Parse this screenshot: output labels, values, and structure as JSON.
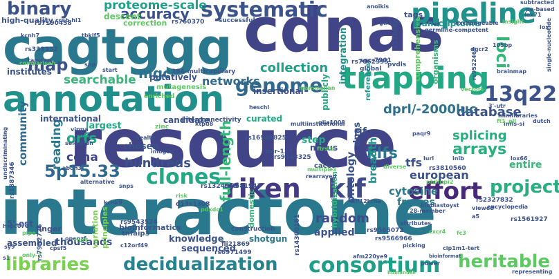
{
  "words": [
    {
      "text": "resource",
      "color": "#414487"
    },
    {
      "text": "interactome",
      "color": "#2a788e"
    },
    {
      "text": "cdnas",
      "color": "#414487"
    },
    {
      "text": "cagtggg",
      "color": "#2a788e"
    },
    {
      "text": "annotation",
      "color": "#21908d"
    },
    {
      "text": "trapping",
      "color": "#22a884"
    },
    {
      "text": "pipeline",
      "color": "#21918c"
    },
    {
      "text": "systematic",
      "color": "#3b528b"
    },
    {
      "text": "binary",
      "color": "#3b528b"
    },
    {
      "text": "riken",
      "color": "#443983"
    },
    {
      "text": "klf",
      "color": "#3e4a89"
    },
    {
      "text": "effort",
      "color": "#482878"
    },
    {
      "text": "clones",
      "color": "#22a884"
    },
    {
      "text": "project",
      "color": "#28ae80"
    },
    {
      "text": "13q22",
      "color": "#3b528b"
    },
    {
      "text": "genome",
      "color": "#31688e"
    },
    {
      "text": "map",
      "color": "#3b528b"
    },
    {
      "text": "loci",
      "color": "#35b779"
    },
    {
      "text": "consortium",
      "color": "#1f9e89"
    },
    {
      "text": "heritable",
      "color": "#5ec962"
    },
    {
      "text": "libraries",
      "color": "#7ad151"
    },
    {
      "text": "decidualization",
      "color": "#26828e"
    },
    {
      "text": "5p15.33",
      "color": "#31688e"
    },
    {
      "text": "accuracy",
      "color": "#3b528b"
    },
    {
      "text": "proteome-scale",
      "color": "#1f9e89"
    },
    {
      "text": "collection",
      "color": "#1f9e89"
    },
    {
      "text": "mgc",
      "color": "#2d708e"
    },
    {
      "text": "searchable",
      "color": "#35b779"
    },
    {
      "text": "networks",
      "color": "#31688e"
    },
    {
      "text": "database",
      "color": "#3b528b"
    },
    {
      "text": "dprl/-2000luc",
      "color": "#2d708e"
    },
    {
      "text": "klfs",
      "color": "#2a788e"
    },
    {
      "text": "arrays",
      "color": "#2ab07f"
    },
    {
      "text": "splicing",
      "color": "#29af7f"
    },
    {
      "text": "hundreds",
      "color": "#3b528b"
    },
    {
      "text": "full-length",
      "color": "#35b779"
    },
    {
      "text": "random",
      "color": "#3e4a89"
    },
    {
      "text": "orfs",
      "color": "#22a884"
    },
    {
      "text": "reading",
      "color": "#2a788e"
    },
    {
      "text": "community",
      "color": "#31688e"
    },
    {
      "text": "cdna",
      "color": "#414487"
    },
    {
      "text": "ontology",
      "color": "#3b528b"
    },
    {
      "text": "breadth",
      "color": "#21918c"
    },
    {
      "text": "tfs",
      "color": "#3b528b"
    },
    {
      "text": "european",
      "color": "#3b528b"
    },
    {
      "text": "cytosine",
      "color": "#2a788e"
    },
    {
      "text": "frames",
      "color": "#2a788e"
    },
    {
      "text": "entire",
      "color": "#35b779"
    },
    {
      "text": "dnas",
      "color": "#3b528b"
    },
    {
      "text": "thousands",
      "color": "#3b528b"
    },
    {
      "text": "assembled",
      "color": "#3b528b"
    },
    {
      "text": "knowledge",
      "color": "#3b528b"
    },
    {
      "text": "sequenced",
      "color": "#3b528b"
    },
    {
      "text": "applied",
      "color": "#3b528b"
    },
    {
      "text": "shotgun",
      "color": "#2a788e"
    },
    {
      "text": "largest",
      "color": "#22a884"
    },
    {
      "text": "chosen",
      "color": "#3b528b"
    },
    {
      "text": "step",
      "color": "#22a884"
    },
    {
      "text": "rif",
      "color": "#3b528b"
    },
    {
      "text": "curated",
      "color": "#22a884"
    },
    {
      "text": "international",
      "color": "#3b528b"
    },
    {
      "text": "candidate",
      "color": "#3b528b"
    },
    {
      "text": "integration",
      "color": "#21918c"
    },
    {
      "text": "publicly",
      "color": "#22a884"
    },
    {
      "text": "insertional",
      "color": "#3b528b"
    },
    {
      "text": "comprehensive",
      "color": "#5ec962"
    },
    {
      "text": "transcriptome",
      "color": "#21918c"
    },
    {
      "text": "organisms",
      "color": "#35b779"
    },
    {
      "text": "institutes",
      "color": "#3b528b"
    },
    {
      "text": "high-quality",
      "color": "#3b528b"
    },
    {
      "text": "descent",
      "color": "#5ec962"
    },
    {
      "text": "correction",
      "color": "#5ec962"
    },
    {
      "text": "putatively",
      "color": "#3b528b"
    },
    {
      "text": "tags",
      "color": "#3b528b"
    },
    {
      "text": "hybridization",
      "color": "#35b779"
    },
    {
      "text": "domestic",
      "color": "#35b779"
    },
    {
      "text": "reference",
      "color": "#21918c"
    },
    {
      "text": "mutagenesis",
      "color": "#5ec962"
    },
    {
      "text": "principles",
      "color": "#7ad151"
    },
    {
      "text": "variation",
      "color": "#7ad151"
    },
    {
      "text": "finger",
      "color": "#3b528b"
    },
    {
      "text": "bioinformatics",
      "color": "#3b528b"
    },
    {
      "text": "5'-est",
      "color": "#3b528b"
    },
    {
      "text": "tnfaip3",
      "color": "#3b528b"
    },
    {
      "text": "successful",
      "color": "#3b528b"
    },
    {
      "text": "interconnectivity",
      "color": "#3b528b"
    },
    {
      "text": "construction",
      "color": "#3b528b"
    },
    {
      "text": "c57bl/6n",
      "color": "#3b528b"
    },
    {
      "text": "global",
      "color": "#3b528b"
    },
    {
      "text": "nexus",
      "color": "#3b528b"
    },
    {
      "text": "caccc",
      "color": "#3b528b"
    },
    {
      "text": "flj21869",
      "color": "#3b528b"
    },
    {
      "text": "rs6971499",
      "color": "#3b528b"
    },
    {
      "text": "mir-137",
      "color": "#3b528b"
    },
    {
      "text": "rs16986825",
      "color": "#3b528b"
    },
    {
      "text": "rs9543325",
      "color": "#3b528b"
    },
    {
      "text": "rs1324913",
      "color": "#3b528b"
    },
    {
      "text": "rs9581943",
      "color": "#3b528b"
    },
    {
      "text": "rs9543524",
      "color": "#3b528b"
    },
    {
      "text": "rs9565072",
      "color": "#3b528b"
    },
    {
      "text": "rs9566966",
      "color": "#3b528b"
    },
    {
      "text": "rs3810560",
      "color": "#3b528b"
    },
    {
      "text": "rs2327832",
      "color": "#3b528b"
    },
    {
      "text": "rs1561927",
      "color": "#3b528b"
    },
    {
      "text": "rs7062395",
      "color": "#3b528b"
    },
    {
      "text": "rs760370",
      "color": "#3b528b"
    },
    {
      "text": "rs7190458",
      "color": "#3b528b"
    },
    {
      "text": "rs333332",
      "color": "#3b528b"
    },
    {
      "text": "rs1887346",
      "color": "#3b528b"
    },
    {
      "text": "rs7932726",
      "color": "#3b528b"
    },
    {
      "text": "rs14300161",
      "color": "#3b528b"
    },
    {
      "text": "384-multicapillary",
      "color": "#3b528b"
    },
    {
      "text": "d13s1308",
      "color": "#3b528b"
    },
    {
      "text": "sgc-7901",
      "color": "#3b528b"
    },
    {
      "text": "pvdls",
      "color": "#3b528b"
    },
    {
      "text": "kcnh7",
      "color": "#3b528b"
    },
    {
      "text": "kcnk9",
      "color": "#3b528b"
    },
    {
      "text": "tbklf5",
      "color": "#3b528b"
    },
    {
      "text": "gtf3c5",
      "color": "#3b528b"
    },
    {
      "text": "ccsb-hi1",
      "color": "#3b528b"
    },
    {
      "text": "tarscan",
      "color": "#3b528b"
    },
    {
      "text": "hspc070",
      "color": "#3b528b"
    },
    {
      "text": "cpsf5",
      "color": "#3b528b"
    },
    {
      "text": "openzf",
      "color": "#3b528b"
    },
    {
      "text": "c12orf49",
      "color": "#3b528b"
    },
    {
      "text": "afm220ye9",
      "color": "#3b528b"
    },
    {
      "text": "picking",
      "color": "#3b528b"
    },
    {
      "text": "cip1m1-tert",
      "color": "#3b528b"
    },
    {
      "text": "power",
      "color": "#3b528b"
    },
    {
      "text": "abdh3",
      "color": "#3b528b"
    },
    {
      "text": "imogen",
      "color": "#3b528b"
    },
    {
      "text": "ktpu8",
      "color": "#3b528b"
    },
    {
      "text": "virma",
      "color": "#3b528b"
    },
    {
      "text": "snps",
      "color": "#3b528b"
    },
    {
      "text": "selection",
      "color": "#3b528b"
    },
    {
      "text": "alternative",
      "color": "#3b528b"
    },
    {
      "text": "health",
      "color": "#3b528b"
    },
    {
      "text": "exchangeable",
      "color": "#3b528b"
    },
    {
      "text": "anoikis",
      "color": "#3b528b"
    },
    {
      "text": "subtracted",
      "color": "#3b528b"
    },
    {
      "text": "pe-based",
      "color": "#3b528b"
    },
    {
      "text": "dgcr2",
      "color": "#3b528b"
    },
    {
      "text": "3'-utr",
      "color": "#3b528b"
    },
    {
      "text": "minilibraries",
      "color": "#3b528b"
    },
    {
      "text": "dutch",
      "color": "#3b528b"
    },
    {
      "text": "lox71",
      "color": "#3b528b"
    },
    {
      "text": "lox66",
      "color": "#3b528b"
    },
    {
      "text": "lox",
      "color": "#3b528b"
    },
    {
      "text": "105bp",
      "color": "#3b528b"
    },
    {
      "text": "brainmap",
      "color": "#3b528b"
    },
    {
      "text": "single-nucleotide",
      "color": "#3b528b"
    },
    {
      "text": "rs9522466",
      "color": "#3b528b"
    },
    {
      "text": "infls-si",
      "color": "#3b528b"
    },
    {
      "text": "paqr9",
      "color": "#3b528b"
    },
    {
      "text": "lurl",
      "color": "#3b528b"
    },
    {
      "text": "inib",
      "color": "#3b528b"
    },
    {
      "text": "encyclopedia",
      "color": "#3b528b"
    },
    {
      "text": "viewed",
      "color": "#3b528b"
    },
    {
      "text": "biobiastoyst",
      "color": "#3b528b"
    },
    {
      "text": "attributes",
      "color": "#3b528b"
    },
    {
      "text": "heschl",
      "color": "#3b528b"
    },
    {
      "text": "rearrayed",
      "color": "#3b528b"
    },
    {
      "text": "28-member",
      "color": "#3b528b"
    },
    {
      "text": "klf12krna",
      "color": "#3b528b"
    },
    {
      "text": "multiinstitutional",
      "color": "#3b528b"
    },
    {
      "text": "snp",
      "color": "#3b528b"
    },
    {
      "text": "germline-competent",
      "color": "#3b528b"
    },
    {
      "text": "undiscriminating",
      "color": "#3b528b"
    },
    {
      "text": "glia1008",
      "color": "#3b528b"
    },
    {
      "text": "zinc",
      "color": "#5ec962"
    },
    {
      "text": "enriched",
      "color": "#5ec962"
    },
    {
      "text": "pdxdc1",
      "color": "#5ec962"
    },
    {
      "text": "diverse",
      "color": "#5ec962"
    },
    {
      "text": "ftrslb",
      "color": "#5ec962"
    },
    {
      "text": "mammalian",
      "color": "#5ec962"
    },
    {
      "text": "vectors",
      "color": "#5ec962"
    },
    {
      "text": "insight",
      "color": "#5ec962"
    },
    {
      "text": "only-7",
      "color": "#5ec962"
    },
    {
      "text": "hurt",
      "color": "#5ec962"
    },
    {
      "text": "pipe",
      "color": "#5ec962"
    },
    {
      "text": "comparison",
      "color": "#5ec962"
    },
    {
      "text": "risk",
      "color": "#5ec962"
    },
    {
      "text": "multiplex",
      "color": "#5ec962"
    },
    {
      "text": "philippi2",
      "color": "#5ec962"
    },
    {
      "text": "cxcr4",
      "color": "#5ec962"
    },
    {
      "text": "fc3",
      "color": "#5ec962"
    },
    {
      "text": "start",
      "color": "#3b528b"
    },
    {
      "text": "sy9",
      "color": "#3b528b"
    },
    {
      "text": "s1",
      "color": "#3b528b"
    },
    {
      "text": "humanlike",
      "color": "#5ec962"
    },
    {
      "text": "representing",
      "color": "#3b528b"
    },
    {
      "text": "ft1_pll",
      "color": "#5ec962"
    },
    {
      "text": "bioinformat",
      "color": "#3b528b"
    },
    {
      "text": "a5",
      "color": "#3b528b"
    }
  ]
}
